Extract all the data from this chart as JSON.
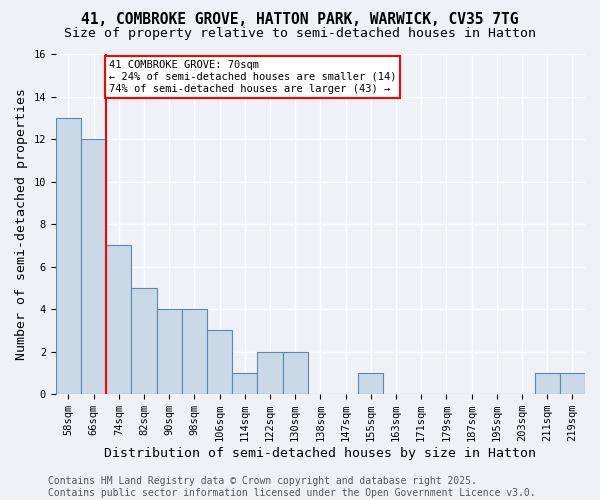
{
  "title_line1": "41, COMBROKE GROVE, HATTON PARK, WARWICK, CV35 7TG",
  "title_line2": "Size of property relative to semi-detached houses in Hatton",
  "xlabel": "Distribution of semi-detached houses by size in Hatton",
  "ylabel": "Number of semi-detached properties",
  "bin_labels": [
    "58sqm",
    "66sqm",
    "74sqm",
    "82sqm",
    "90sqm",
    "98sqm",
    "106sqm",
    "114sqm",
    "122sqm",
    "130sqm",
    "138sqm",
    "147sqm",
    "155sqm",
    "163sqm",
    "171sqm",
    "179sqm",
    "187sqm",
    "195sqm",
    "203sqm",
    "211sqm",
    "219sqm"
  ],
  "bin_values": [
    13,
    12,
    7,
    5,
    4,
    4,
    3,
    1,
    2,
    2,
    0,
    0,
    1,
    0,
    0,
    0,
    0,
    0,
    0,
    1,
    1
  ],
  "bar_color": "#c9d9e8",
  "bar_edge_color": "#5a8ab0",
  "ylim": [
    0,
    16
  ],
  "yticks": [
    0,
    2,
    4,
    6,
    8,
    10,
    12,
    14,
    16
  ],
  "red_line_x": 1.5,
  "annotation_text": "41 COMBROKE GROVE: 70sqm\n← 24% of semi-detached houses are smaller (14)\n74% of semi-detached houses are larger (43) →",
  "annotation_box_color": "white",
  "annotation_box_edge_color": "red",
  "vline_color": "red",
  "footer_text": "Contains HM Land Registry data © Crown copyright and database right 2025.\nContains public sector information licensed under the Open Government Licence v3.0.",
  "background_color": "#eef2f7",
  "grid_color": "white",
  "title_fontsize": 10.5,
  "subtitle_fontsize": 9.5,
  "tick_fontsize": 7.5,
  "label_fontsize": 9.5,
  "footer_fontsize": 7
}
